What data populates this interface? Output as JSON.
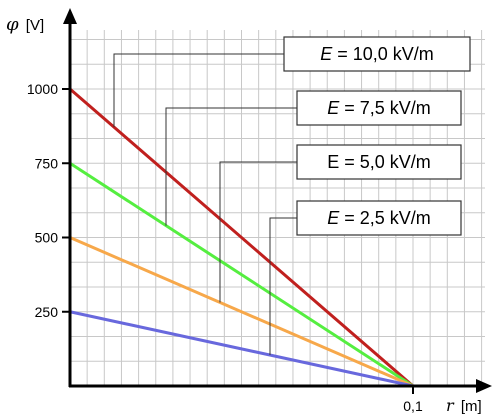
{
  "chart_data": {
    "type": "line",
    "x": [
      0,
      0.1
    ],
    "xlim": [
      0,
      0.1
    ],
    "ylim": [
      0,
      1000
    ],
    "xticks": [
      "0,1"
    ],
    "yticks": [
      "250",
      "500",
      "750",
      "1000"
    ],
    "ytick_values": [
      250,
      500,
      750,
      1000
    ],
    "y_axis_label": {
      "symbol": "φ",
      "unit": "[V]"
    },
    "x_axis_label": {
      "symbol": "r",
      "unit": "[m]"
    },
    "grid": true,
    "series": [
      {
        "name": "E = 10,0 kV/m",
        "label_prefix": "E",
        "label_rest": " = 10,0 kV/m",
        "italic": true,
        "values": [
          1000,
          0
        ],
        "color": "#c0201e"
      },
      {
        "name": "E = 7,5 kV/m",
        "label_prefix": "E",
        "label_rest": " = 7,5 kV/m",
        "italic": true,
        "values": [
          750,
          0
        ],
        "color": "#55ee40"
      },
      {
        "name": "E = 5,0 kV/m",
        "label_prefix": "E",
        "label_rest": " = 5,0 kV/m",
        "italic": false,
        "values": [
          500,
          0
        ],
        "color": "#f7a84a"
      },
      {
        "name": "E = 2,5 kV/m",
        "label_prefix": "E",
        "label_rest": " = 2,5 kV/m",
        "italic": true,
        "values": [
          250,
          0
        ],
        "color": "#6868dd"
      }
    ]
  }
}
